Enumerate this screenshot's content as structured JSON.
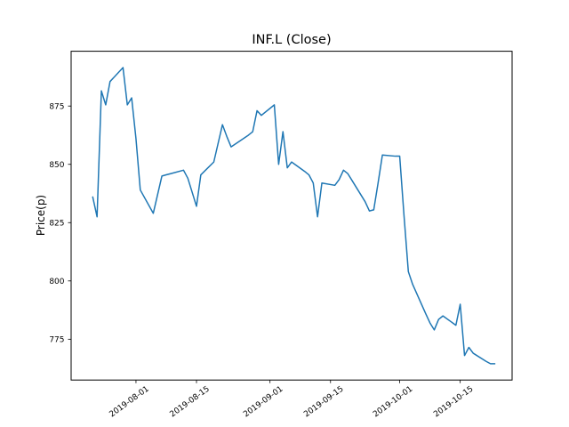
{
  "figure": {
    "background": "#ffffff"
  },
  "chart_data": {
    "type": "line",
    "title": "INF.L (Close)",
    "xlabel": "",
    "ylabel": "Price(p)",
    "grid": false,
    "legend": "none",
    "line_color": "#1f77b4",
    "axis_color": "#000000",
    "ylim": [
      757.5,
      898.5
    ],
    "xlim_dates": [
      "2019-07-17",
      "2019-10-27"
    ],
    "y_ticks": [
      775,
      800,
      825,
      850,
      875
    ],
    "x_ticks": [
      "2019-08-01",
      "2019-08-15",
      "2019-09-01",
      "2019-09-15",
      "2019-10-01",
      "2019-10-15"
    ],
    "series": [
      {
        "name": "Close",
        "color": "#1f77b4",
        "dates": [
          "2019-07-22",
          "2019-07-23",
          "2019-07-24",
          "2019-07-25",
          "2019-07-26",
          "2019-07-29",
          "2019-07-30",
          "2019-07-31",
          "2019-08-01",
          "2019-08-02",
          "2019-08-05",
          "2019-08-06",
          "2019-08-07",
          "2019-08-08",
          "2019-08-09",
          "2019-08-12",
          "2019-08-13",
          "2019-08-14",
          "2019-08-15",
          "2019-08-16",
          "2019-08-19",
          "2019-08-20",
          "2019-08-21",
          "2019-08-22",
          "2019-08-23",
          "2019-08-27",
          "2019-08-28",
          "2019-08-29",
          "2019-08-30",
          "2019-09-02",
          "2019-09-03",
          "2019-09-04",
          "2019-09-05",
          "2019-09-06",
          "2019-09-09",
          "2019-09-10",
          "2019-09-11",
          "2019-09-12",
          "2019-09-13",
          "2019-09-16",
          "2019-09-17",
          "2019-09-18",
          "2019-09-19",
          "2019-09-20",
          "2019-09-23",
          "2019-09-24",
          "2019-09-25",
          "2019-09-26",
          "2019-09-27",
          "2019-09-30",
          "2019-10-01",
          "2019-10-02",
          "2019-10-03",
          "2019-10-04",
          "2019-10-07",
          "2019-10-08",
          "2019-10-09",
          "2019-10-10",
          "2019-10-11",
          "2019-10-14",
          "2019-10-15",
          "2019-10-16",
          "2019-10-17",
          "2019-10-18",
          "2019-10-21",
          "2019-10-22",
          "2019-10-23"
        ],
        "values": [
          836,
          827.5,
          881.5,
          875.5,
          885.5,
          891.5,
          875.5,
          878.5,
          861,
          839,
          829,
          837,
          845,
          845.5,
          846,
          847.5,
          844,
          838,
          832,
          845.5,
          851,
          859,
          867,
          862,
          857.5,
          862.5,
          864,
          873,
          871,
          875.5,
          850,
          864,
          848.5,
          851,
          847,
          845.5,
          842,
          827.5,
          842,
          841,
          843.5,
          847.5,
          846,
          843,
          834,
          830,
          830.5,
          842,
          854,
          853.5,
          853.5,
          828,
          804,
          798.5,
          786,
          782,
          779,
          783.5,
          785,
          781,
          790,
          768,
          771.5,
          769,
          765.5,
          764.5,
          764.5
        ]
      }
    ]
  }
}
